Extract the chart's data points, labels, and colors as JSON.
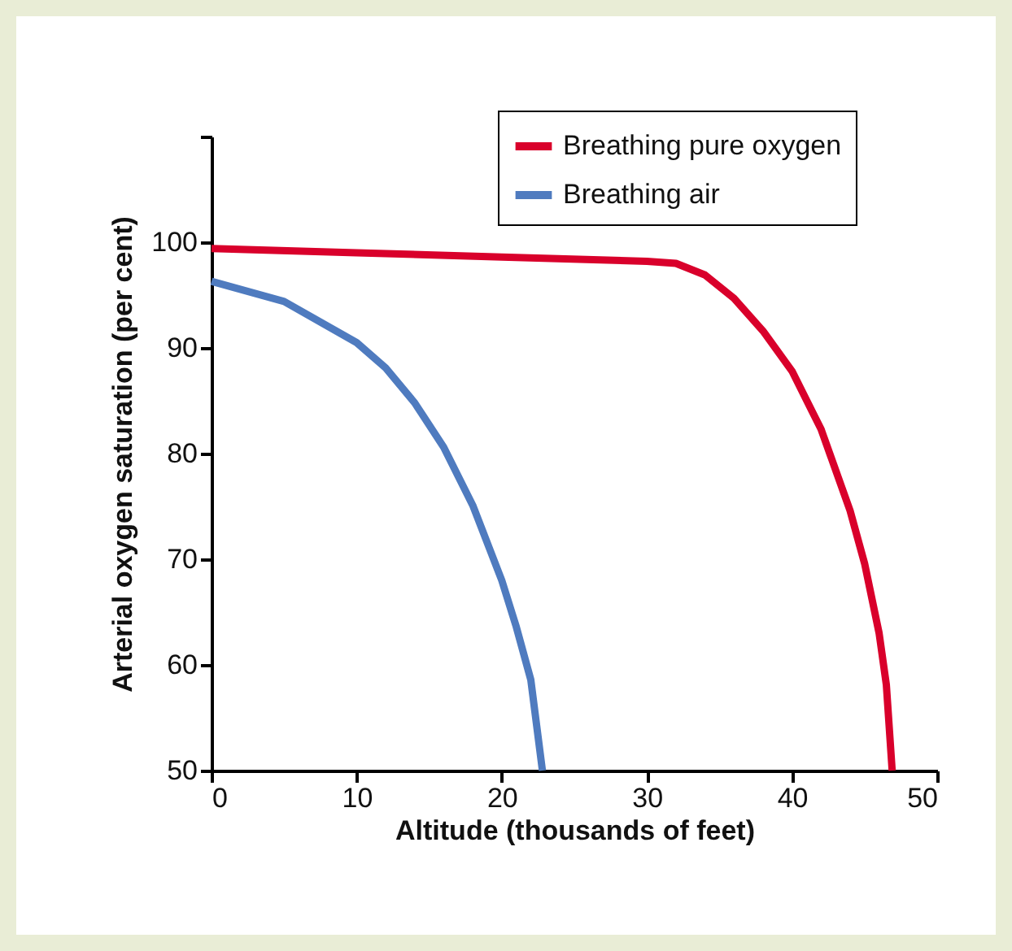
{
  "chart_data": {
    "type": "line",
    "xlabel": "Altitude (thousands of feet)",
    "ylabel": "Arterial oxygen saturation (per cent)",
    "xlim": [
      0,
      50
    ],
    "xticks": [
      0,
      10,
      20,
      30,
      40,
      50
    ],
    "ylim": [
      50,
      110
    ],
    "yticks": [
      50,
      60,
      70,
      80,
      90,
      100,
      {
        "value": 110,
        "label": null
      }
    ],
    "grid": false,
    "legend": "top right",
    "marker": "none",
    "line_style": "solid",
    "series": [
      {
        "name": "Breathing pure oxygen",
        "color": "#d9002b",
        "x": [
          0,
          10,
          20,
          30,
          32,
          34,
          36,
          38,
          40,
          42,
          44,
          45,
          46,
          46.5,
          46.9
        ],
        "values": [
          99.4,
          99.0,
          98.6,
          98.2,
          98.0,
          96.9,
          94.7,
          91.6,
          87.8,
          82.3,
          74.6,
          69.6,
          63.0,
          58.1,
          50
        ]
      },
      {
        "name": "Breathing air",
        "color": "#4f7bbf",
        "x": [
          0,
          5,
          10,
          12,
          14,
          16,
          18,
          20,
          21,
          22,
          22.8
        ],
        "values": [
          96.3,
          94.4,
          90.5,
          88.1,
          84.8,
          80.6,
          75.1,
          68.0,
          63.6,
          58.6,
          50
        ]
      }
    ]
  }
}
